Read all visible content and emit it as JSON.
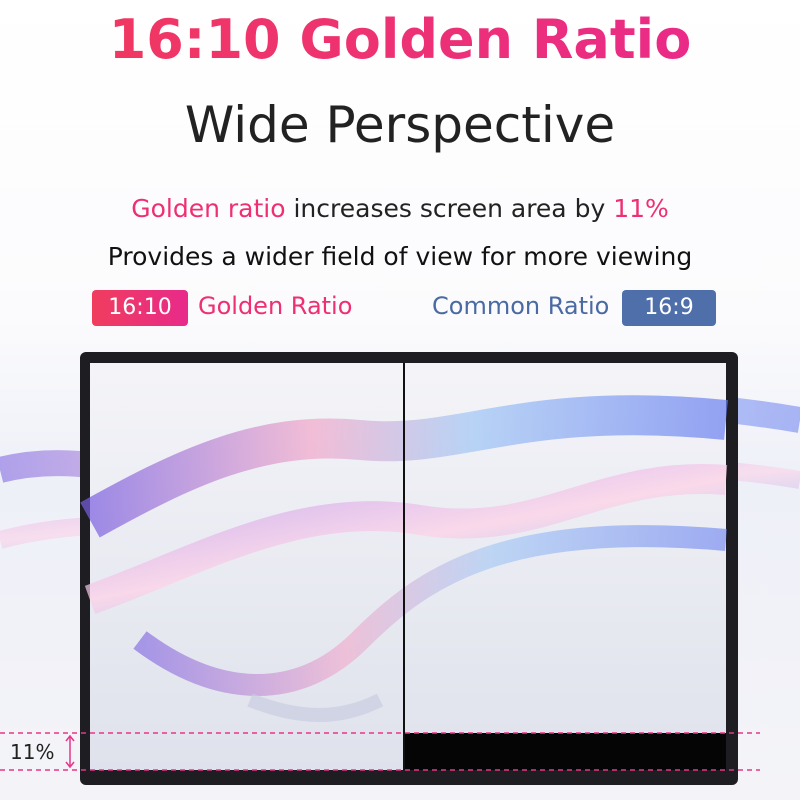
{
  "header": {
    "title": "16:10 Golden Ratio",
    "subtitle": "Wide Perspective"
  },
  "description": {
    "highlight": "Golden ratio",
    "middle": " increases screen area by ",
    "percent": "11%",
    "line2": "Provides a wider field of view for more viewing"
  },
  "legend": {
    "golden_badge": "16:10",
    "golden_label": "Golden Ratio",
    "common_label": "Common Ratio",
    "common_badge": "16:9"
  },
  "annotation": {
    "label": "11%"
  }
}
